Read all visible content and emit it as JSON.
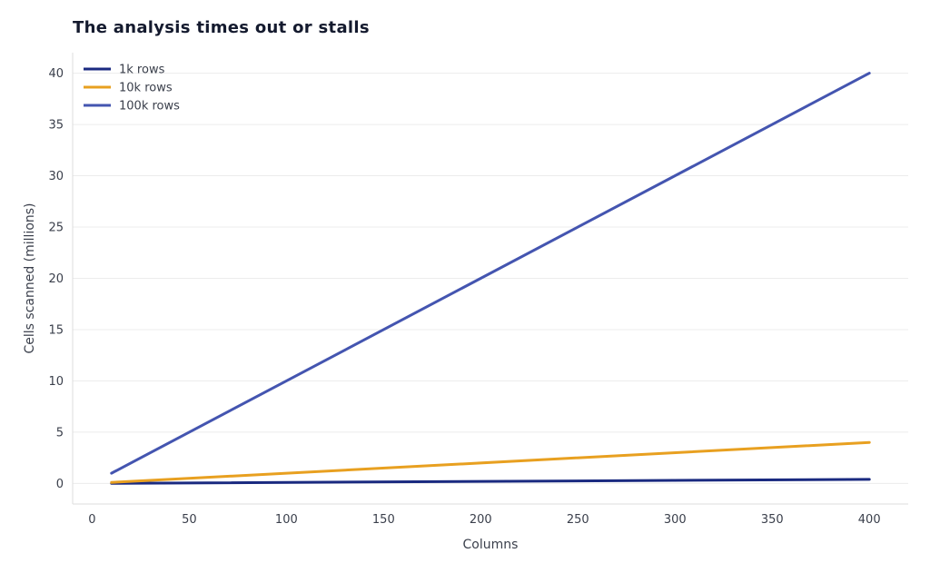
{
  "chart_data": {
    "type": "line",
    "title": "The analysis times out or stalls",
    "xlabel": "Columns",
    "ylabel": "Cells scanned (millions)",
    "xlim": [
      -10,
      420
    ],
    "ylim": [
      -2,
      42
    ],
    "xticks": [
      0,
      50,
      100,
      150,
      200,
      250,
      300,
      350,
      400
    ],
    "yticks": [
      0,
      5,
      10,
      15,
      20,
      25,
      30,
      35,
      40
    ],
    "grid": true,
    "legend": "top-left",
    "series": [
      {
        "name": "1k rows",
        "color": "#1a2a80",
        "x": [
          10,
          400
        ],
        "y": [
          0.01,
          0.4
        ]
      },
      {
        "name": "10k rows",
        "color": "#e8a020",
        "x": [
          10,
          400
        ],
        "y": [
          0.1,
          4
        ]
      },
      {
        "name": "100k rows",
        "color": "#4455b0",
        "x": [
          10,
          400
        ],
        "y": [
          1,
          40
        ]
      }
    ]
  }
}
